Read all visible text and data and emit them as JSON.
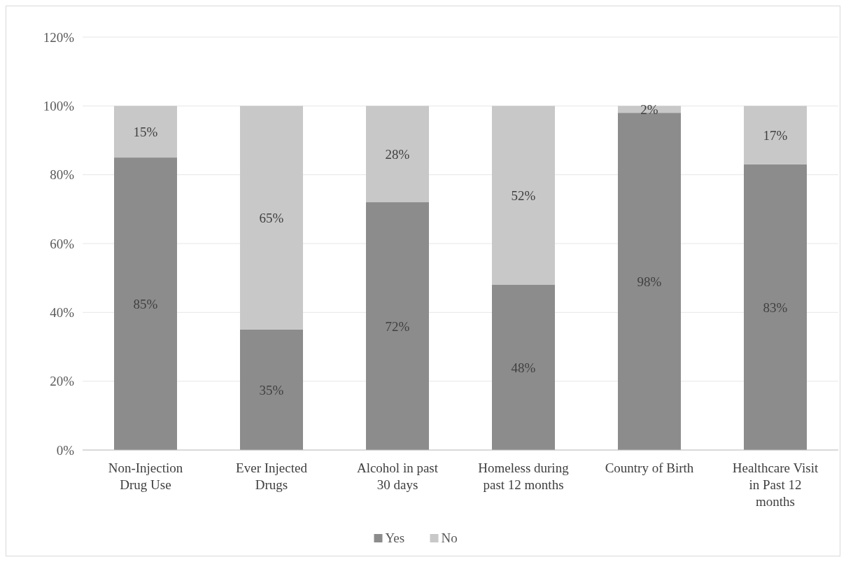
{
  "chart_data": {
    "type": "bar",
    "stacked": true,
    "categories": [
      "Non-Injection Drug Use",
      "Ever Injected Drugs",
      "Alcohol in past 30 days",
      "Homeless during past 12 months",
      "Country of Birth",
      "Healthcare Visit in Past 12 months"
    ],
    "series": [
      {
        "name": "Yes",
        "color": "#8c8c8c",
        "values": [
          85,
          35,
          72,
          48,
          98,
          83
        ],
        "value_labels": [
          "85%",
          "35%",
          "72%",
          "48%",
          "98%",
          "83%"
        ]
      },
      {
        "name": "No",
        "color": "#c8c8c8",
        "values": [
          15,
          65,
          28,
          52,
          2,
          17
        ],
        "value_labels": [
          "15%",
          "65%",
          "28%",
          "52%",
          "2%",
          "17%"
        ]
      }
    ],
    "ylim": [
      0,
      120
    ],
    "yticks": [
      {
        "value": 0,
        "label": "0%"
      },
      {
        "value": 20,
        "label": "20%"
      },
      {
        "value": 40,
        "label": "40%"
      },
      {
        "value": 60,
        "label": "60%"
      },
      {
        "value": 80,
        "label": "80%"
      },
      {
        "value": 100,
        "label": "100%"
      },
      {
        "value": 120,
        "label": "120%"
      }
    ],
    "grid": "y",
    "legend": "bottom"
  }
}
